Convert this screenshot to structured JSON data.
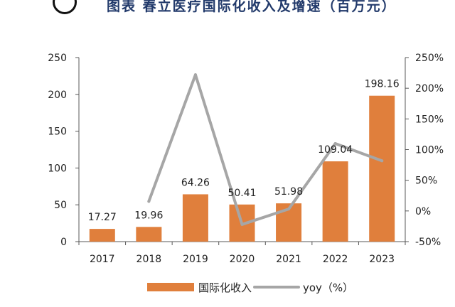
{
  "header": {
    "title": "图表 春立医疗国际化收入及增速（百万元）"
  },
  "chart_data": {
    "type": "bar",
    "title": "图表 春立医疗国际化收入及增速（百万元）",
    "categories": [
      "2017",
      "2018",
      "2019",
      "2020",
      "2021",
      "2022",
      "2023"
    ],
    "series": [
      {
        "name": "国际化收入",
        "type": "bar",
        "axis": "left",
        "color": "#e07f3c",
        "values": [
          17.27,
          19.96,
          64.26,
          50.41,
          51.98,
          109.04,
          198.16
        ],
        "labels": [
          "17.27",
          "19.96",
          "64.26",
          "50.41",
          "51.98",
          "109.04",
          "198.16"
        ]
      },
      {
        "name": "yoy（%）",
        "type": "line",
        "axis": "right",
        "color": "#a6a6a6",
        "values": [
          null,
          15.6,
          222.0,
          -22.0,
          3.1,
          109.8,
          81.7
        ]
      }
    ],
    "y_left": {
      "range": [
        0,
        250
      ],
      "ticks": [
        0,
        50,
        100,
        150,
        200,
        250
      ],
      "tick_labels": [
        "0",
        "50",
        "100",
        "150",
        "200",
        "250"
      ]
    },
    "y_right": {
      "range": [
        -50,
        250
      ],
      "ticks": [
        -50,
        0,
        50,
        100,
        150,
        200,
        250
      ],
      "tick_labels": [
        "-50%",
        "0%",
        "50%",
        "100%",
        "150%",
        "200%",
        "250%"
      ]
    },
    "legend_position": "bottom",
    "grid": false,
    "xlabel": "",
    "ylabel": ""
  }
}
